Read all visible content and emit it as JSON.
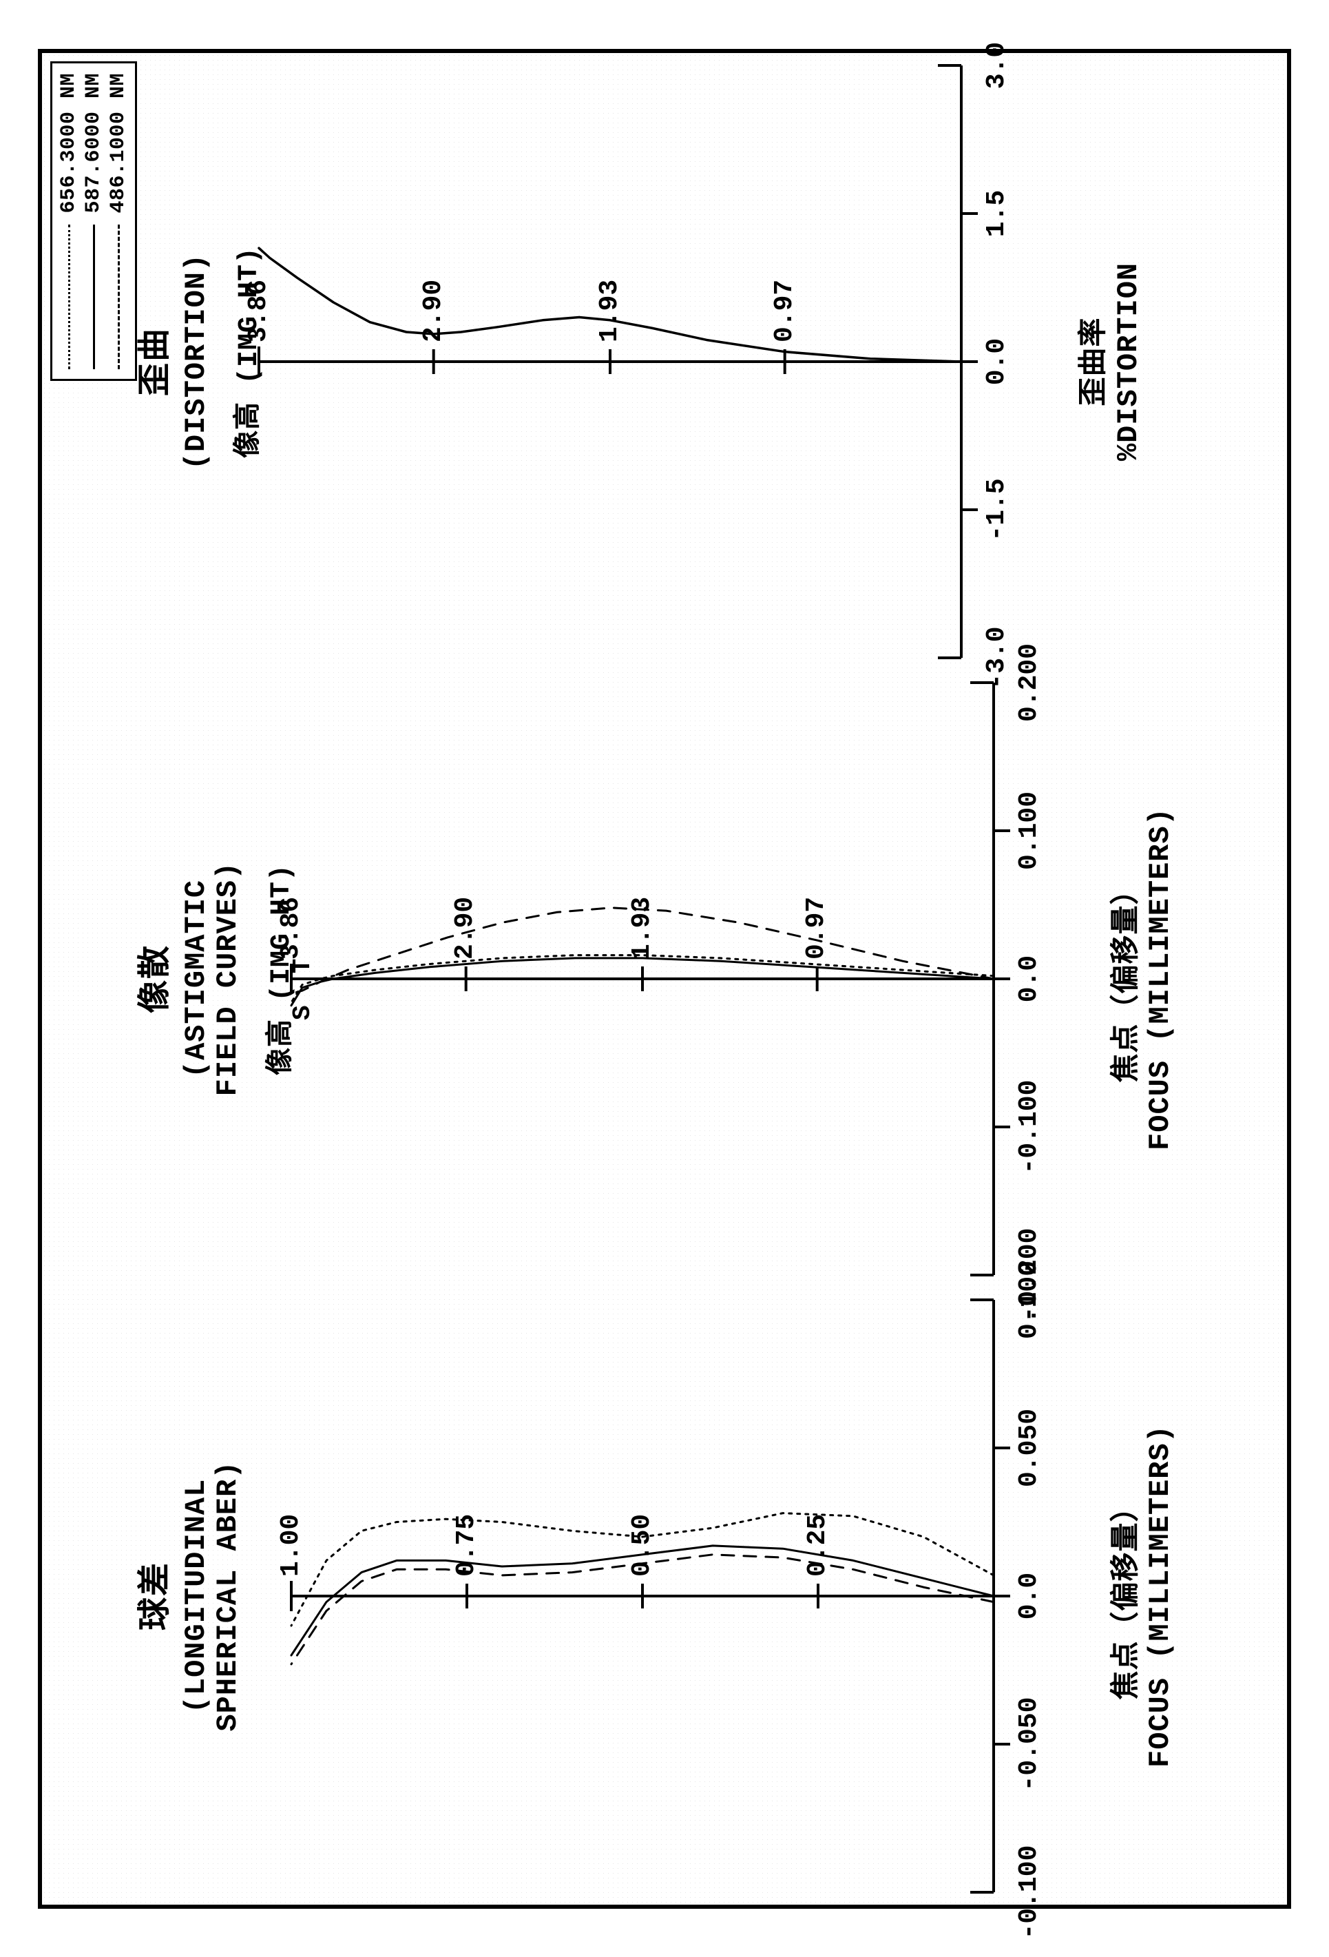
{
  "background_color": "#ffffff",
  "frame_border_color": "#000000",
  "text_color": "#000000",
  "font_family": "Courier New, monospace",
  "legend": {
    "border_color": "#000000",
    "items": [
      {
        "label": "656.3000 NM",
        "style": "dotted",
        "color": "#000000"
      },
      {
        "label": "587.6000 NM",
        "style": "solid",
        "color": "#000000"
      },
      {
        "label": "486.1000 NM",
        "style": "dashed",
        "color": "#000000"
      }
    ]
  },
  "charts": [
    {
      "id": "spherical",
      "type": "line",
      "title_cn": "球差",
      "title_en": "(LONGITUDINAL\nSPHERICAL ABER)",
      "y_axis_label": "",
      "y_ticks": [
        1.0,
        0.75,
        0.5,
        0.25
      ],
      "y_tick_labels": [
        "1.00",
        "0.75",
        "0.50",
        "0.25"
      ],
      "x_ticks": [
        -0.1,
        -0.05,
        0.0,
        0.05,
        0.1
      ],
      "x_tick_labels": [
        "-0.100",
        "-0.050",
        "0.0",
        "0.050",
        "0.100"
      ],
      "xlim": [
        -0.1,
        0.1
      ],
      "ylim": [
        0.0,
        1.0
      ],
      "x_axis_title": "焦点（偏移量）\nFOCUS (MILLIMETERS)",
      "axis_color": "#000000",
      "axis_width": 4,
      "series": [
        {
          "name": "656.3nm",
          "style": "dotted",
          "color": "#000000",
          "width": 3,
          "points": [
            [
              0.007,
              0.0
            ],
            [
              0.02,
              0.1
            ],
            [
              0.027,
              0.2
            ],
            [
              0.028,
              0.3
            ],
            [
              0.023,
              0.4
            ],
            [
              0.02,
              0.5
            ],
            [
              0.022,
              0.6
            ],
            [
              0.025,
              0.7
            ],
            [
              0.026,
              0.78
            ],
            [
              0.025,
              0.85
            ],
            [
              0.022,
              0.9
            ],
            [
              0.012,
              0.95
            ],
            [
              -0.01,
              1.0
            ]
          ]
        },
        {
          "name": "587.6nm",
          "style": "solid",
          "color": "#000000",
          "width": 3,
          "points": [
            [
              0.0,
              0.0
            ],
            [
              0.006,
              0.1
            ],
            [
              0.012,
              0.2
            ],
            [
              0.016,
              0.3
            ],
            [
              0.017,
              0.4
            ],
            [
              0.014,
              0.5
            ],
            [
              0.011,
              0.6
            ],
            [
              0.01,
              0.7
            ],
            [
              0.012,
              0.78
            ],
            [
              0.012,
              0.85
            ],
            [
              0.008,
              0.9
            ],
            [
              -0.002,
              0.95
            ],
            [
              -0.02,
              1.0
            ]
          ]
        },
        {
          "name": "486.1nm",
          "style": "dashed",
          "color": "#000000",
          "width": 3,
          "points": [
            [
              -0.002,
              0.0
            ],
            [
              0.003,
              0.1
            ],
            [
              0.009,
              0.2
            ],
            [
              0.013,
              0.3
            ],
            [
              0.014,
              0.4
            ],
            [
              0.011,
              0.5
            ],
            [
              0.008,
              0.6
            ],
            [
              0.007,
              0.7
            ],
            [
              0.009,
              0.78
            ],
            [
              0.009,
              0.85
            ],
            [
              0.005,
              0.9
            ],
            [
              -0.005,
              0.95
            ],
            [
              -0.023,
              1.0
            ]
          ]
        }
      ]
    },
    {
      "id": "astigmatism",
      "type": "line",
      "title_cn": "像散",
      "title_en": "(ASTIGMATIC\nFIELD CURVES)",
      "y_axis_label": "像高 (IMG HT)",
      "st_label": "S  T",
      "y_ticks": [
        3.86,
        2.9,
        1.93,
        0.97
      ],
      "y_tick_labels": [
        "3.86",
        "2.90",
        "1.93",
        "0.97"
      ],
      "x_ticks": [
        -0.2,
        -0.1,
        0.0,
        0.1,
        0.2
      ],
      "x_tick_labels": [
        "-0.200",
        "-0.100",
        "0.0",
        "0.100",
        "0.200"
      ],
      "xlim": [
        -0.2,
        0.2
      ],
      "ylim": [
        0.0,
        3.86
      ],
      "x_axis_title": "焦点（偏移量）\nFOCUS (MILLIMETERS)",
      "axis_color": "#000000",
      "axis_width": 4,
      "series": [
        {
          "name": "S-solid",
          "style": "solid",
          "color": "#000000",
          "width": 3,
          "points": [
            [
              0.0,
              0.0
            ],
            [
              0.004,
              0.5
            ],
            [
              0.008,
              1.0
            ],
            [
              0.012,
              1.5
            ],
            [
              0.014,
              1.93
            ],
            [
              0.014,
              2.3
            ],
            [
              0.012,
              2.7
            ],
            [
              0.008,
              3.1
            ],
            [
              0.004,
              3.4
            ],
            [
              0.0,
              3.63
            ],
            [
              -0.002,
              3.7
            ],
            [
              -0.006,
              3.8
            ],
            [
              -0.018,
              3.86
            ]
          ]
        },
        {
          "name": "T-dashed",
          "style": "dashed",
          "color": "#000000",
          "width": 3,
          "points": [
            [
              0.0,
              0.0
            ],
            [
              0.012,
              0.5
            ],
            [
              0.026,
              0.97
            ],
            [
              0.038,
              1.4
            ],
            [
              0.046,
              1.8
            ],
            [
              0.048,
              2.1
            ],
            [
              0.045,
              2.4
            ],
            [
              0.038,
              2.7
            ],
            [
              0.028,
              3.0
            ],
            [
              0.016,
              3.3
            ],
            [
              0.006,
              3.55
            ],
            [
              -0.002,
              3.7
            ],
            [
              -0.008,
              3.8
            ],
            [
              -0.01,
              3.86
            ]
          ]
        },
        {
          "name": "S-dotted",
          "style": "dotted",
          "color": "#000000",
          "width": 3,
          "points": [
            [
              0.002,
              0.0
            ],
            [
              0.006,
              0.5
            ],
            [
              0.01,
              1.0
            ],
            [
              0.014,
              1.5
            ],
            [
              0.016,
              1.93
            ],
            [
              0.016,
              2.3
            ],
            [
              0.014,
              2.7
            ],
            [
              0.01,
              3.1
            ],
            [
              0.006,
              3.4
            ],
            [
              0.002,
              3.63
            ],
            [
              0.0,
              3.7
            ],
            [
              -0.004,
              3.8
            ],
            [
              -0.016,
              3.86
            ]
          ]
        }
      ]
    },
    {
      "id": "distortion",
      "type": "line",
      "title_cn": "歪曲",
      "title_en": "(DISTORTION)",
      "y_axis_label": "像高 (IMG HT)",
      "y_ticks": [
        3.86,
        2.9,
        1.93,
        0.97
      ],
      "y_tick_labels": [
        "3.86",
        "2.90",
        "1.93",
        "0.97"
      ],
      "x_ticks": [
        -3.0,
        -1.5,
        0.0,
        1.5,
        3.0
      ],
      "x_tick_labels": [
        "-3.0",
        "-1.5",
        "0.0",
        "1.5",
        "3.0"
      ],
      "xlim": [
        -3.0,
        3.0
      ],
      "ylim": [
        0.0,
        3.86
      ],
      "x_axis_title": "歪曲率\n%DISTORTION",
      "axis_color": "#000000",
      "axis_width": 4,
      "series": [
        {
          "name": "distortion",
          "style": "solid",
          "color": "#000000",
          "width": 3.5,
          "points": [
            [
              0.0,
              0.0
            ],
            [
              0.03,
              0.5
            ],
            [
              0.1,
              0.97
            ],
            [
              0.22,
              1.4
            ],
            [
              0.34,
              1.7
            ],
            [
              0.42,
              1.93
            ],
            [
              0.45,
              2.1
            ],
            [
              0.42,
              2.3
            ],
            [
              0.35,
              2.55
            ],
            [
              0.3,
              2.75
            ],
            [
              0.28,
              2.9
            ],
            [
              0.3,
              3.05
            ],
            [
              0.4,
              3.25
            ],
            [
              0.6,
              3.45
            ],
            [
              0.85,
              3.65
            ],
            [
              1.05,
              3.8
            ],
            [
              1.15,
              3.86
            ]
          ]
        }
      ]
    }
  ]
}
